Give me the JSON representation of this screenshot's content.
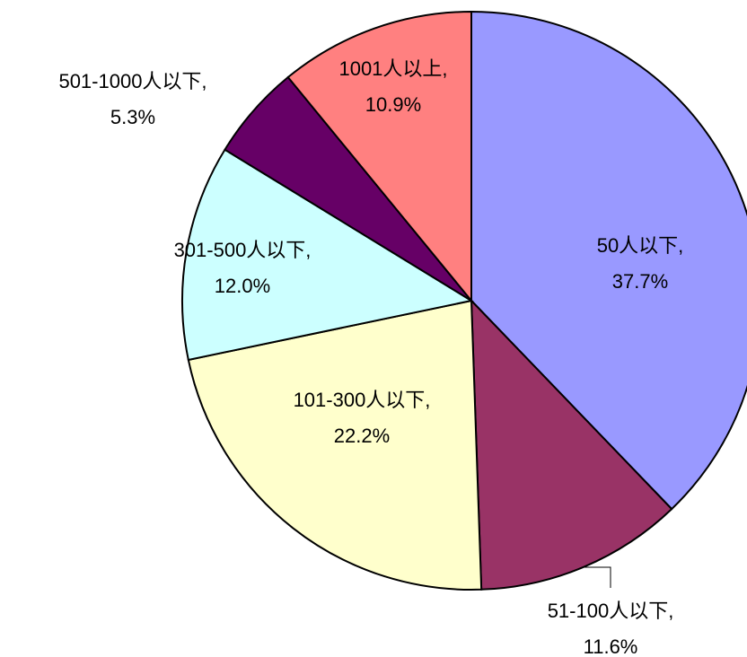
{
  "chart_data": {
    "type": "pie",
    "categories": [
      "50人以下,",
      "51-100人以下,",
      "101-300人以下,",
      "301-500人以下,",
      "501-1000人以下,",
      "1001人以上,"
    ],
    "values": [
      37.7,
      11.6,
      22.2,
      12.0,
      5.3,
      10.9
    ],
    "value_labels": [
      "37.7%",
      "11.6%",
      "22.2%",
      "12.0%",
      "5.3%",
      "10.9%"
    ],
    "colors": [
      "#9999ff",
      "#993366",
      "#ffffcc",
      "#ccffff",
      "#660066",
      "#ff8080"
    ]
  }
}
